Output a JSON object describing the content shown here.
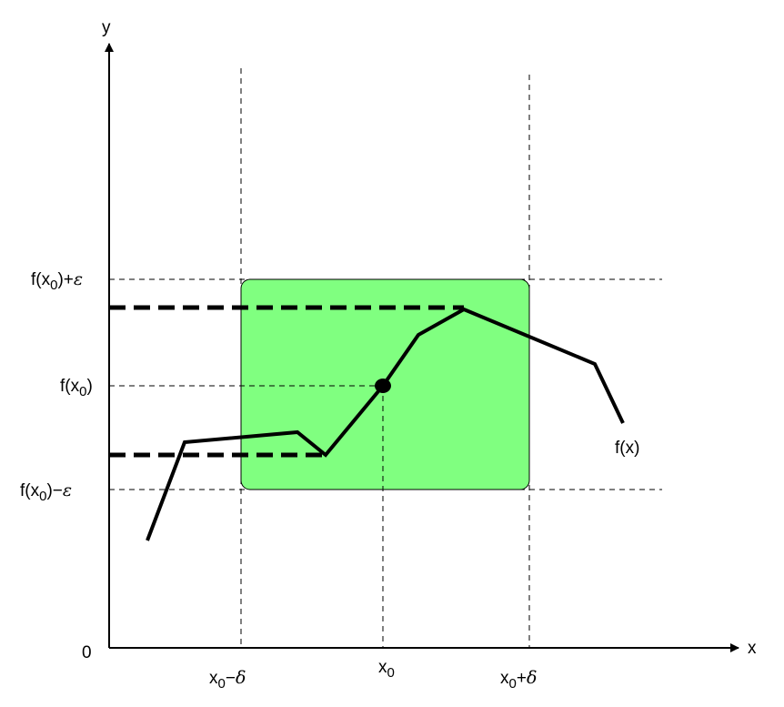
{
  "axes": {
    "x_label": "x",
    "y_label": "y",
    "origin_label": "0"
  },
  "x_ticks": {
    "left": {
      "base": "x",
      "sub": "0",
      "op": "−",
      "sym": "δ"
    },
    "center": {
      "base": "x",
      "sub": "0"
    },
    "right": {
      "base": "x",
      "sub": "0",
      "op": "+",
      "sym": "δ"
    }
  },
  "y_ticks": {
    "upper": {
      "pre": "f(x",
      "sub": "0",
      "post": ")",
      "op": "+",
      "sym": "ε"
    },
    "center": {
      "pre": "f(x",
      "sub": "0",
      "post": ")"
    },
    "lower": {
      "pre": "f(x",
      "sub": "0",
      "post": ")",
      "op": "−",
      "sym": "ε"
    }
  },
  "curve_label": "f(x)",
  "colors": {
    "region_fill": "#80ff80",
    "curve": "#000000",
    "guides": "#000000"
  }
}
